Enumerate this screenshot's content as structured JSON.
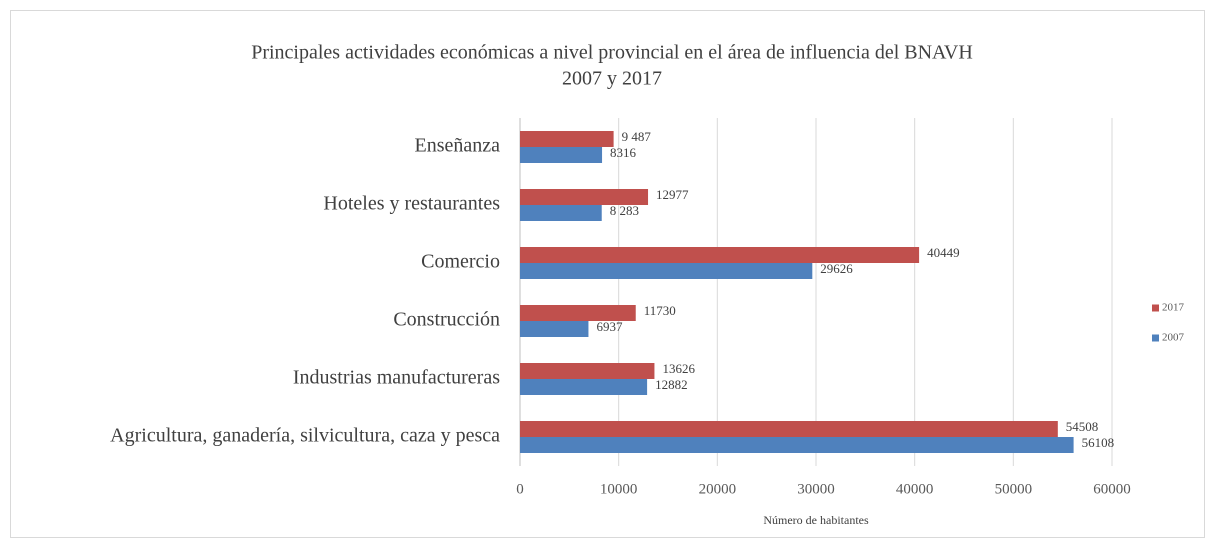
{
  "chart_data": {
    "type": "hbar",
    "title": "Principales actividades económicas a nivel provincial en el área de influencia del BNAVH",
    "subtitle": "2007 y 2017",
    "x_label": "Número de habitantes",
    "categories": [
      "Enseñanza",
      "Hoteles y restaurantes",
      "Comercio",
      "Construcción",
      "Industrias manufactureras",
      "Agricultura, ganadería, silvicultura, caza y pesca"
    ],
    "series": [
      {
        "name": "2017",
        "color": "#c0504d",
        "values": [
          9487,
          12977,
          40449,
          11730,
          13626,
          54508
        ],
        "value_labels": [
          "9 487",
          "12977",
          "40449",
          "11730",
          "13626",
          "54508"
        ]
      },
      {
        "name": "2007",
        "color": "#4f81bd",
        "values": [
          8316,
          8283,
          29626,
          6937,
          12882,
          56108
        ],
        "value_labels": [
          "8316",
          "8 283",
          "29626",
          "6937",
          "12882",
          "56108"
        ]
      }
    ],
    "xlim": [
      0,
      60000
    ],
    "xticks": [
      0,
      10000,
      20000,
      30000,
      40000,
      50000,
      60000
    ],
    "grid": true,
    "legend": "right"
  }
}
